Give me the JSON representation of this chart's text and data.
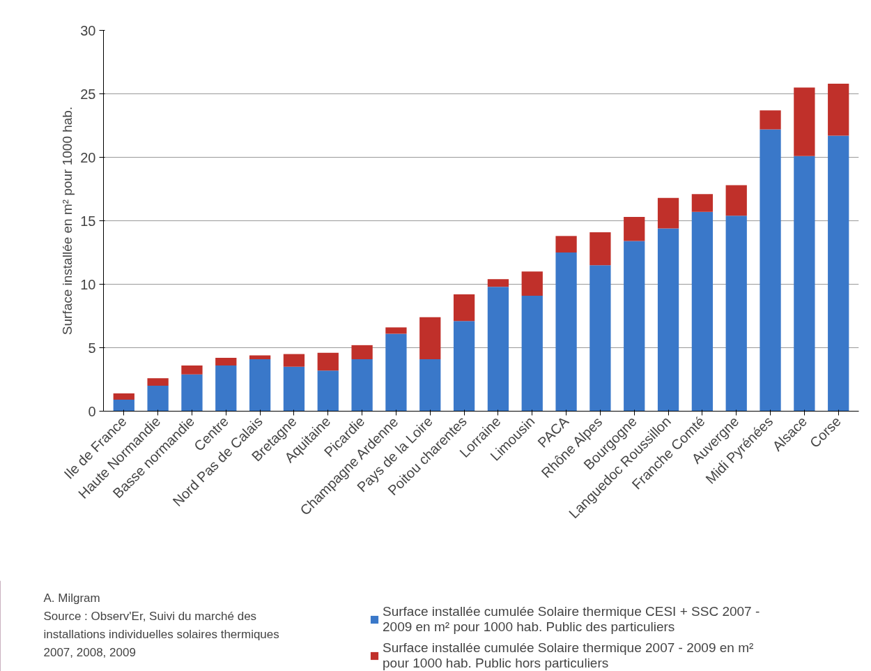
{
  "chart_data": {
    "type": "bar",
    "stacked": true,
    "ylabel": "Surface installée en m² pour 1000 hab.",
    "categories": [
      "Ile de France",
      "Haute Normandie",
      "Basse normandie",
      "Centre",
      "Nord Pas de Calais",
      "Bretagne",
      "Aquitaine",
      "Picardie",
      "Champagne Ardenne",
      "Pays de la Loire",
      "Poitou charentes",
      "Lorraine",
      "Limousin",
      "PACA",
      "Rhône Alpes",
      "Bourgogne",
      "Languedoc Roussillon",
      "Franche Comté",
      "Auvergne",
      "Midi Pyrénées",
      "Alsace",
      "Corse"
    ],
    "series": [
      {
        "name": "Surface installée cumulée Solaire thermique CESI + SSC 2007 - 2009 en m² pour 1000 hab. Public des particuliers",
        "color": "#3a78c9",
        "values": [
          0.9,
          2.0,
          2.9,
          3.6,
          4.1,
          3.5,
          3.2,
          4.1,
          6.1,
          4.1,
          7.1,
          9.8,
          9.1,
          12.5,
          11.5,
          13.4,
          14.4,
          15.7,
          15.4,
          22.2,
          20.1,
          21.7
        ]
      },
      {
        "name": "Surface installée cumulée Solaire thermique 2007 - 2009 en m² pour 1000 hab. Public hors particuliers",
        "color": "#c0302a",
        "values": [
          0.5,
          0.6,
          0.7,
          0.6,
          0.3,
          1.0,
          1.4,
          1.1,
          0.5,
          3.3,
          2.1,
          0.6,
          1.9,
          1.3,
          2.6,
          1.9,
          2.4,
          1.4,
          2.4,
          1.5,
          5.4,
          4.1
        ]
      }
    ],
    "ylim": [
      0,
      30
    ],
    "yticks": [
      0,
      5,
      10,
      15,
      20,
      25,
      30
    ],
    "grid": "y",
    "legend": "bottom right",
    "annotations": [
      "A. Milgram",
      "Source : Observ'Er, Suivi du marché des installations individuelles solaires thermiques 2007, 2008, 2009"
    ]
  }
}
